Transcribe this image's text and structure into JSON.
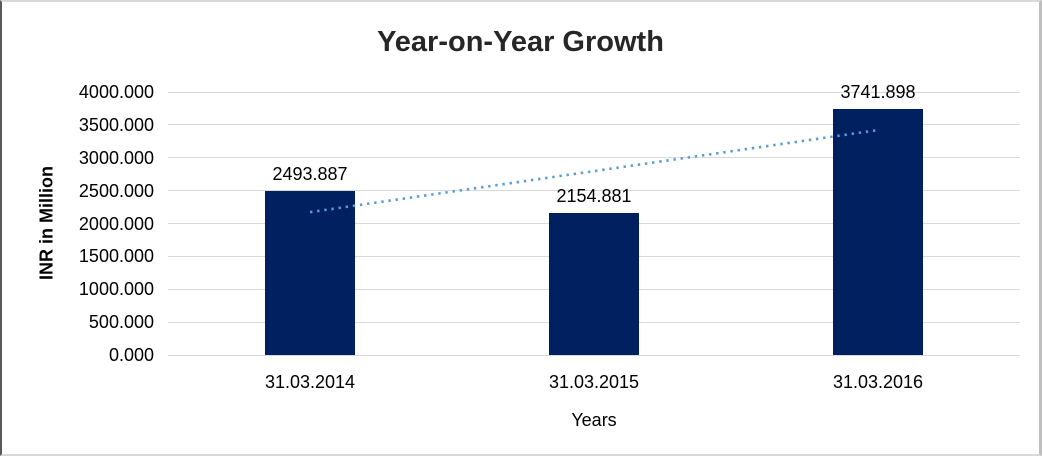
{
  "chart_data": {
    "type": "bar",
    "title": "Year-on-Year Growth",
    "categories": [
      "31.03.2014",
      "31.03.2015",
      "31.03.2016"
    ],
    "values": [
      2493.887,
      2154.881,
      3741.898
    ],
    "data_labels": [
      "2493.887",
      "2154.881",
      "3741.898"
    ],
    "xlabel": "Years",
    "ylabel": "INR in Million",
    "ylim": [
      0,
      4000
    ],
    "ytick_step": 500,
    "ytick_labels": [
      "0.000",
      "500.000",
      "1000.000",
      "1500.000",
      "2000.000",
      "2500.000",
      "3000.000",
      "3500.000",
      "4000.000"
    ],
    "grid": true,
    "legend_position": "none",
    "bar_color": "#002060",
    "gridline_color": "#d9d9d9",
    "axis_line_color": "#d9d9d9",
    "title_color": "#262626",
    "text_color": "#000000",
    "trendline": {
      "present": true,
      "fit": "linear",
      "style": "dotted",
      "color": "#5b9bd5"
    }
  }
}
